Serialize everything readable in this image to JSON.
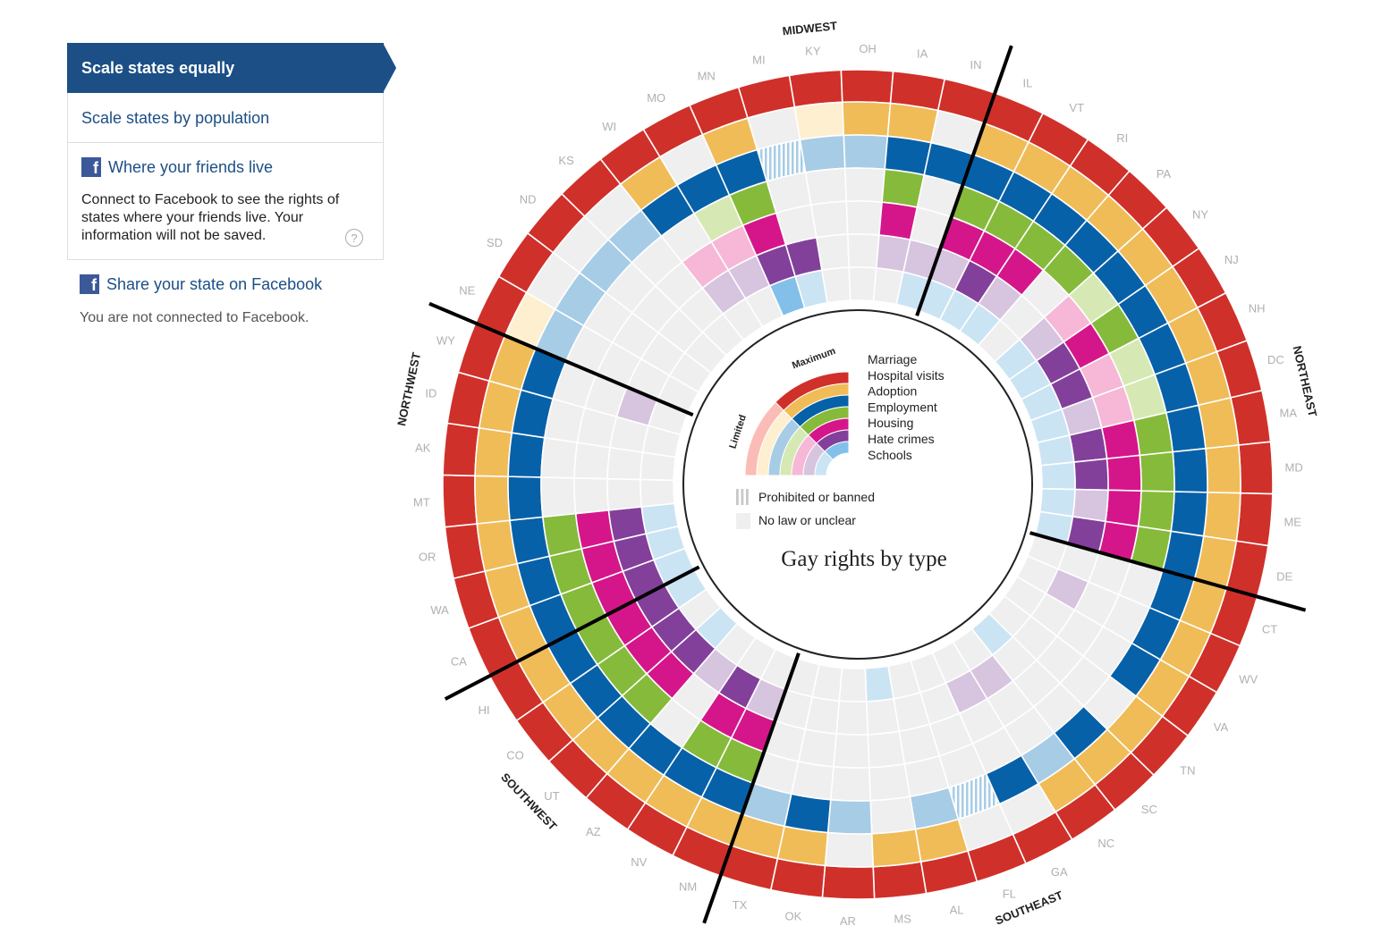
{
  "sidebar": {
    "scale_equal": "Scale states equally",
    "scale_population": "Scale states by population",
    "friends_title": "Where your friends live",
    "friends_desc": "Connect to Facebook to see the rights of states where your friends live. Your information will not be saved.",
    "help_icon": "question-mark-icon",
    "share_label": "Share your state on Facebook",
    "status": "You are not connected to Facebook.",
    "fb_glyph": "f"
  },
  "chart_data": {
    "type": "radial-grid",
    "title": "Gay rights by type",
    "states": [
      "KY",
      "OH",
      "IA",
      "IN",
      "IL",
      "VT",
      "RI",
      "PA",
      "NY",
      "NJ",
      "NH",
      "DC",
      "MA",
      "MD",
      "ME",
      "DE",
      "CT",
      "WV",
      "VA",
      "TN",
      "SC",
      "NC",
      "GA",
      "FL",
      "AL",
      "MS",
      "AR",
      "OK",
      "TX",
      "NM",
      "NV",
      "AZ",
      "UT",
      "CO",
      "HI",
      "CA",
      "WA",
      "OR",
      "MT",
      "AK",
      "ID",
      "WY",
      "NE",
      "SD",
      "ND",
      "KS",
      "WI",
      "MO",
      "MN",
      "MI"
    ],
    "regions": [
      {
        "name": "MIDWEST"
      },
      {
        "name": "NORTHEAST"
      },
      {
        "name": "SOUTHEAST"
      },
      {
        "name": "SOUTHWEST"
      },
      {
        "name": "NORTHWEST"
      }
    ],
    "categories": [
      "Marriage",
      "Hospital visits",
      "Adoption",
      "Employment",
      "Housing",
      "Hate crimes",
      "Schools"
    ],
    "colors": {
      "Marriage": [
        "#fbbcb7",
        "#d0302a"
      ],
      "Hospital visits": [
        "#fdefd0",
        "#f0bc58"
      ],
      "Adoption": [
        "#a7cce6",
        "#0761a9"
      ],
      "Employment": [
        "#d6e9b4",
        "#86ba3b"
      ],
      "Housing": [
        "#f6b8d6",
        "#d5168a"
      ],
      "Hate crimes": [
        "#d7c4df",
        "#83409b"
      ],
      "Schools": [
        "#cbe4f4",
        "#82c0ea"
      ],
      "none": "#efefef"
    },
    "legend": {
      "maximum": "Maximum",
      "limited": "Limited",
      "prohibited": "Prohibited or banned",
      "nolaw": "No law or unclear"
    },
    "levels_note": "0 = no law or unclear, 1 = limited, 2 = maximum, 3 = prohibited or banned",
    "rows": {
      "KY": [
        2,
        1,
        1,
        0,
        0,
        0,
        0
      ],
      "OH": [
        2,
        2,
        1,
        0,
        0,
        0,
        0
      ],
      "IA": [
        2,
        2,
        2,
        2,
        2,
        1,
        0
      ],
      "IN": [
        2,
        0,
        2,
        0,
        0,
        1,
        1
      ],
      "IL": [
        2,
        2,
        2,
        2,
        2,
        1,
        1
      ],
      "VT": [
        2,
        2,
        2,
        2,
        2,
        2,
        1
      ],
      "RI": [
        2,
        2,
        2,
        2,
        2,
        1,
        1
      ],
      "PA": [
        2,
        2,
        2,
        2,
        0,
        0,
        0
      ],
      "NY": [
        2,
        2,
        2,
        1,
        1,
        1,
        1
      ],
      "NJ": [
        2,
        2,
        2,
        2,
        2,
        2,
        1
      ],
      "NH": [
        2,
        2,
        2,
        1,
        1,
        2,
        1
      ],
      "DC": [
        2,
        2,
        2,
        1,
        1,
        1,
        1
      ],
      "MA": [
        2,
        2,
        2,
        2,
        2,
        2,
        1
      ],
      "MD": [
        2,
        2,
        2,
        2,
        2,
        2,
        1
      ],
      "ME": [
        2,
        2,
        2,
        2,
        2,
        1,
        1
      ],
      "DE": [
        2,
        2,
        2,
        2,
        2,
        2,
        1
      ],
      "CT": [
        2,
        2,
        2,
        0,
        0,
        0,
        0
      ],
      "WV": [
        2,
        2,
        2,
        0,
        0,
        1,
        0
      ],
      "VA": [
        2,
        2,
        2,
        0,
        0,
        0,
        0
      ],
      "TN": [
        2,
        2,
        0,
        0,
        0,
        0,
        0
      ],
      "SC": [
        2,
        2,
        2,
        0,
        0,
        0,
        1
      ],
      "NC": [
        2,
        2,
        1,
        0,
        0,
        1,
        0
      ],
      "GA": [
        2,
        0,
        2,
        0,
        0,
        1,
        0
      ],
      "FL": [
        2,
        0,
        3,
        0,
        0,
        0,
        0
      ],
      "AL": [
        2,
        2,
        1,
        0,
        0,
        0,
        0
      ],
      "MS": [
        2,
        2,
        0,
        0,
        0,
        0,
        1
      ],
      "AR": [
        2,
        0,
        1,
        0,
        0,
        0,
        0
      ],
      "OK": [
        2,
        2,
        2,
        0,
        0,
        0,
        0
      ],
      "TX": [
        2,
        2,
        1,
        0,
        0,
        0,
        0
      ],
      "NM": [
        2,
        2,
        2,
        2,
        2,
        1,
        0
      ],
      "NV": [
        2,
        2,
        2,
        2,
        2,
        2,
        0
      ],
      "AZ": [
        2,
        2,
        2,
        0,
        0,
        1,
        0
      ],
      "UT": [
        2,
        2,
        2,
        2,
        2,
        2,
        1
      ],
      "CO": [
        2,
        2,
        2,
        2,
        2,
        2,
        0
      ],
      "HI": [
        2,
        2,
        2,
        2,
        2,
        2,
        1
      ],
      "CA": [
        2,
        2,
        2,
        2,
        2,
        2,
        1
      ],
      "WA": [
        2,
        2,
        2,
        2,
        2,
        2,
        1
      ],
      "OR": [
        2,
        2,
        2,
        2,
        2,
        2,
        1
      ],
      "MT": [
        2,
        2,
        2,
        0,
        0,
        0,
        0
      ],
      "AK": [
        2,
        2,
        2,
        0,
        0,
        0,
        0
      ],
      "ID": [
        2,
        2,
        2,
        0,
        0,
        0,
        0
      ],
      "WY": [
        2,
        2,
        2,
        0,
        0,
        1,
        0
      ],
      "NE": [
        2,
        1,
        1,
        0,
        0,
        0,
        0
      ],
      "SD": [
        2,
        0,
        1,
        0,
        0,
        0,
        0
      ],
      "ND": [
        2,
        0,
        1,
        0,
        0,
        0,
        0
      ],
      "KS": [
        2,
        0,
        1,
        0,
        0,
        0,
        0
      ],
      "WI": [
        2,
        2,
        2,
        0,
        1,
        1,
        0
      ],
      "MO": [
        2,
        0,
        2,
        1,
        1,
        1,
        0
      ],
      "MN": [
        2,
        2,
        2,
        2,
        2,
        2,
        2
      ],
      "MI": [
        2,
        0,
        3,
        0,
        0,
        2,
        1
      ]
    }
  }
}
